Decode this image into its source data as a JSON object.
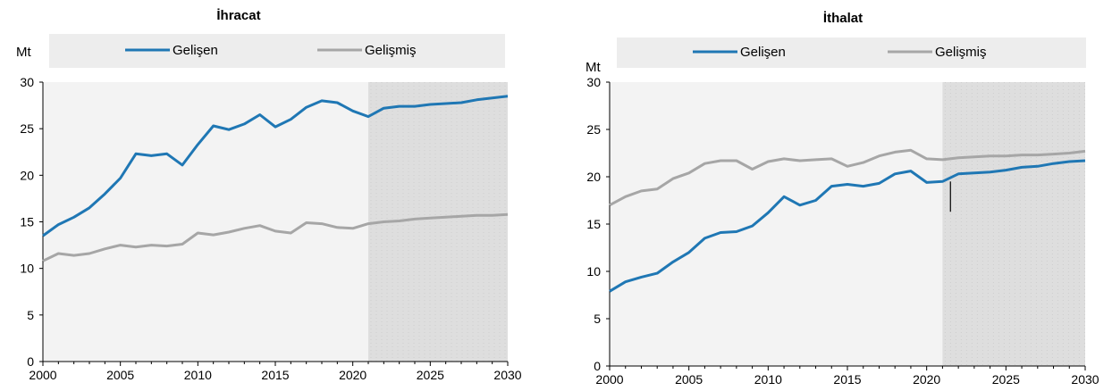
{
  "chart_data": [
    {
      "type": "line",
      "title": "İhracat",
      "ylabel": "Mt",
      "xlabel": "",
      "ylim": [
        0,
        30
      ],
      "xlim": [
        2000,
        2030
      ],
      "yticks": [
        "0",
        "5",
        "10",
        "15",
        "20",
        "25",
        "30"
      ],
      "xticks": [
        "2000",
        "2005",
        "2010",
        "2015",
        "2020",
        "2025",
        "2030"
      ],
      "projection_start": 2021,
      "grid": false,
      "legend_position": "top",
      "x": [
        2000,
        2001,
        2002,
        2003,
        2004,
        2005,
        2006,
        2007,
        2008,
        2009,
        2010,
        2011,
        2012,
        2013,
        2014,
        2015,
        2016,
        2017,
        2018,
        2019,
        2020,
        2021,
        2022,
        2023,
        2024,
        2025,
        2026,
        2027,
        2028,
        2029,
        2030
      ],
      "series": [
        {
          "name": "Gelişen",
          "color": "#1f77b4",
          "values": [
            13.5,
            14.7,
            15.5,
            16.5,
            18.0,
            19.7,
            22.3,
            22.1,
            22.3,
            21.1,
            23.3,
            25.3,
            24.9,
            25.5,
            26.5,
            25.2,
            26.0,
            27.3,
            28.0,
            27.8,
            26.9,
            26.3,
            27.2,
            27.4,
            27.4,
            27.6,
            27.7,
            27.8,
            28.1,
            28.3,
            28.5
          ]
        },
        {
          "name": "Gelişmiş",
          "color": "#a6a6a6",
          "values": [
            10.8,
            11.6,
            11.4,
            11.6,
            12.1,
            12.5,
            12.3,
            12.5,
            12.4,
            12.6,
            13.8,
            13.6,
            13.9,
            14.3,
            14.6,
            14.0,
            13.8,
            14.9,
            14.8,
            14.4,
            14.3,
            14.8,
            15.0,
            15.1,
            15.3,
            15.4,
            15.5,
            15.6,
            15.7,
            15.7,
            15.8
          ]
        }
      ]
    },
    {
      "type": "line",
      "title": "İthalat",
      "ylabel": "Mt",
      "xlabel": "",
      "ylim": [
        0,
        30
      ],
      "xlim": [
        2000,
        2030
      ],
      "yticks": [
        "0",
        "5",
        "10",
        "15",
        "20",
        "25",
        "30"
      ],
      "xticks": [
        "2000",
        "2005",
        "2010",
        "2015",
        "2020",
        "2025",
        "2030"
      ],
      "projection_start": 2021,
      "grid": false,
      "legend_position": "top",
      "x": [
        2000,
        2001,
        2002,
        2003,
        2004,
        2005,
        2006,
        2007,
        2008,
        2009,
        2010,
        2011,
        2012,
        2013,
        2014,
        2015,
        2016,
        2017,
        2018,
        2019,
        2020,
        2021,
        2022,
        2023,
        2024,
        2025,
        2026,
        2027,
        2028,
        2029,
        2030
      ],
      "series": [
        {
          "name": "Gelişen",
          "color": "#1f77b4",
          "values": [
            7.9,
            8.9,
            9.4,
            9.8,
            11.0,
            12.0,
            13.5,
            14.1,
            14.2,
            14.8,
            16.2,
            17.9,
            17.0,
            17.5,
            19.0,
            19.2,
            19.0,
            19.3,
            20.3,
            20.6,
            19.4,
            19.5,
            20.3,
            20.4,
            20.5,
            20.7,
            21.0,
            21.1,
            21.4,
            21.6,
            21.7
          ]
        },
        {
          "name": "Gelişmiş",
          "color": "#a6a6a6",
          "values": [
            17.0,
            17.9,
            18.5,
            18.7,
            19.8,
            20.4,
            21.4,
            21.7,
            21.7,
            20.8,
            21.6,
            21.9,
            21.7,
            21.8,
            21.9,
            21.1,
            21.5,
            22.2,
            22.6,
            22.8,
            21.9,
            21.8,
            22.0,
            22.1,
            22.2,
            22.2,
            22.3,
            22.3,
            22.4,
            22.5,
            22.7
          ]
        }
      ]
    }
  ]
}
